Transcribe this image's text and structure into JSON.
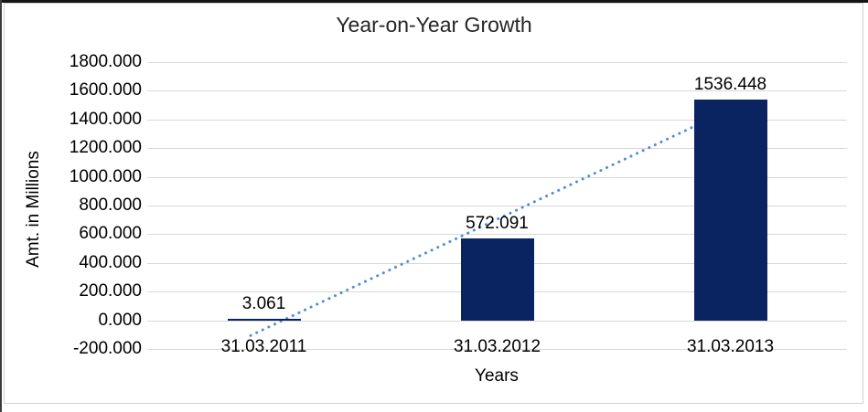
{
  "chart_data": {
    "type": "bar",
    "title": "Year-on-Year Growth",
    "xlabel": "Years",
    "ylabel": "Amt. in Millions",
    "categories": [
      "31.03.2011",
      "31.03.2012",
      "31.03.2013"
    ],
    "values": [
      3.061,
      572.091,
      1536.448
    ],
    "data_labels": [
      "3.061",
      "572.091",
      "1536.448"
    ],
    "ylim": [
      -200,
      1800
    ],
    "ytick_step": 200,
    "ytick_labels": [
      "1800.000",
      "1600.000",
      "1400.000",
      "1200.000",
      "1000.000",
      "800.000",
      "600.000",
      "400.000",
      "200.000",
      "0.000",
      "-200.000"
    ],
    "grid": true,
    "legend": "none",
    "trendline": {
      "style": "dotted",
      "fit": "linear"
    },
    "colors": {
      "bar": "#0a2361",
      "trendline": "#4e8ed6",
      "gridline": "#d9d9d9",
      "frame_border": "#d2d2d2",
      "text": "#000000",
      "title": "#262626"
    }
  }
}
